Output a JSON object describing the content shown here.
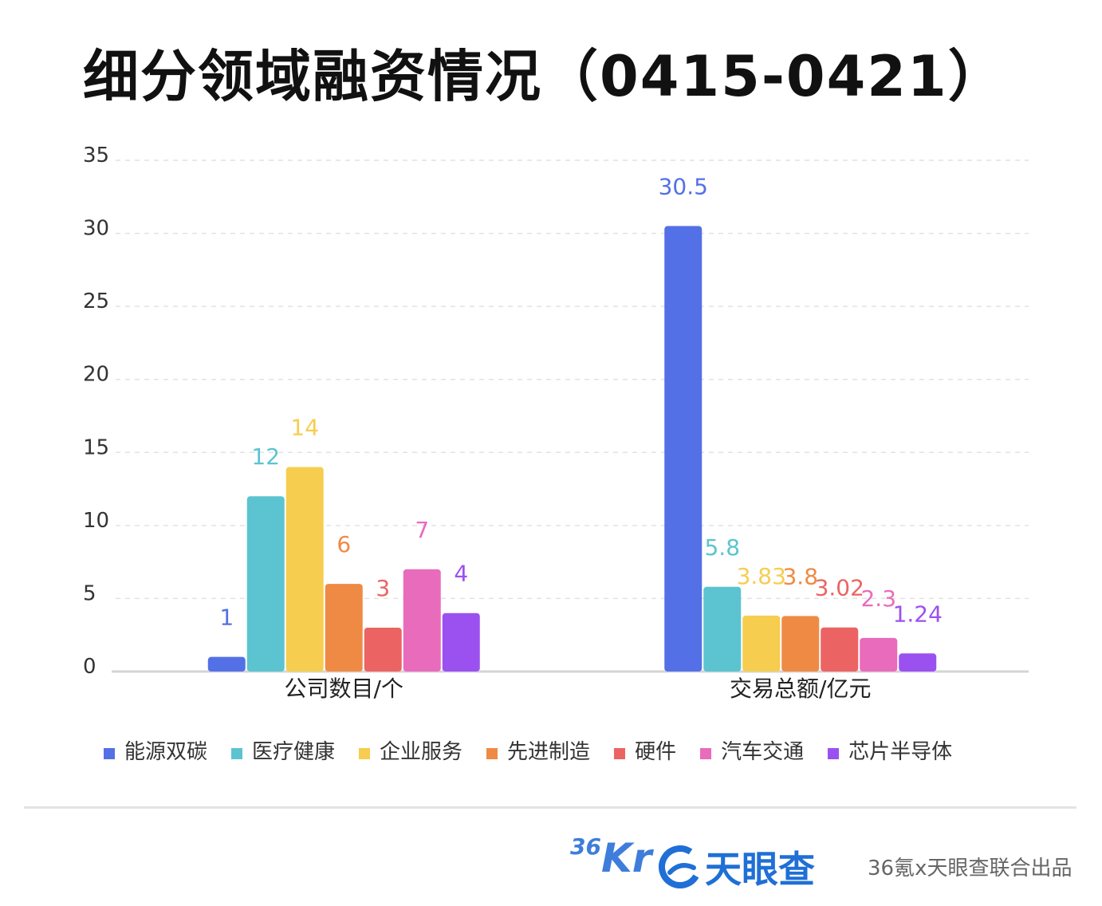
{
  "title": "细分领域融资情况（0415-0421）",
  "chart_data": {
    "type": "bar",
    "categories": [
      "公司数目/个",
      "交易总额/亿元"
    ],
    "ylim": [
      0,
      35
    ],
    "yticks": [
      0,
      5,
      10,
      15,
      20,
      25,
      30,
      35
    ],
    "grid": true,
    "legend_position": "bottom",
    "series": [
      {
        "name": "能源双碳",
        "color": "#5470e6",
        "values": [
          1,
          30.5
        ],
        "labels": [
          "1",
          "30.5"
        ]
      },
      {
        "name": "医疗健康",
        "color": "#5bc4d0",
        "values": [
          12,
          5.8
        ],
        "labels": [
          "12",
          "5.8"
        ]
      },
      {
        "name": "企业服务",
        "color": "#f6cd4f",
        "values": [
          14,
          3.83
        ],
        "labels": [
          "14",
          "3.83"
        ]
      },
      {
        "name": "先进制造",
        "color": "#ef8a45",
        "values": [
          6,
          3.8
        ],
        "labels": [
          "6",
          "3.8"
        ]
      },
      {
        "name": "硬件",
        "color": "#eb6463",
        "values": [
          3,
          3.02
        ],
        "labels": [
          "3",
          "3.02"
        ]
      },
      {
        "name": "汽车交通",
        "color": "#e96bbc",
        "values": [
          7,
          2.3
        ],
        "labels": [
          "7",
          "2.3"
        ]
      },
      {
        "name": "芯片半导体",
        "color": "#9b51f0",
        "values": [
          4,
          1.24
        ],
        "labels": [
          "4",
          "1.24"
        ]
      }
    ]
  },
  "footer": {
    "logo_36kr_num": "36",
    "logo_36kr_letters": "Kr",
    "logo_tianyancha": "天眼查",
    "credit": "36氪x天眼查联合出品"
  }
}
